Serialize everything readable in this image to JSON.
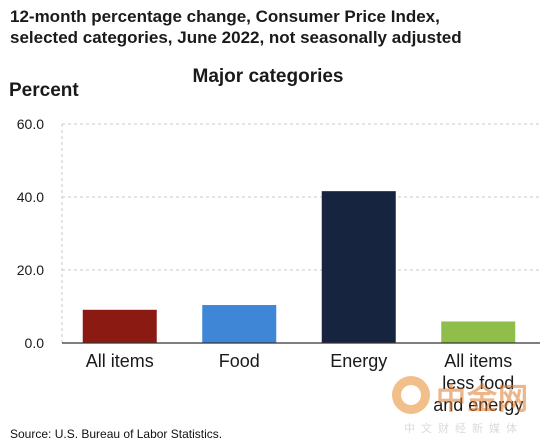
{
  "header": {
    "title_line1": "12-month percentage change, Consumer Price Index,",
    "title_line2": "selected categories, June 2022, not seasonally adjusted"
  },
  "chart_data": {
    "type": "bar",
    "title": "Major categories",
    "ylabel": "Percent",
    "xlabel": "",
    "categories": [
      [
        "All items"
      ],
      [
        "Food"
      ],
      [
        "Energy"
      ],
      [
        "All items",
        "less food",
        "and energy"
      ]
    ],
    "values": [
      9.1,
      10.4,
      41.6,
      5.9
    ],
    "colors": [
      "#8b1a12",
      "#3f86d6",
      "#16243f",
      "#8fbf4a"
    ],
    "ylim": [
      0,
      60
    ],
    "yticks": [
      "0.0",
      "20.0",
      "40.0",
      "60.0"
    ],
    "ytick_values": [
      0,
      20,
      40,
      60
    ],
    "grid": "horizontal-dashed",
    "legend": "none"
  },
  "footer": {
    "source": "Source: U.S. Bureau of Labor Statistics."
  },
  "watermark": {
    "brand": "中金网",
    "tagline": "中文财经新媒体"
  }
}
